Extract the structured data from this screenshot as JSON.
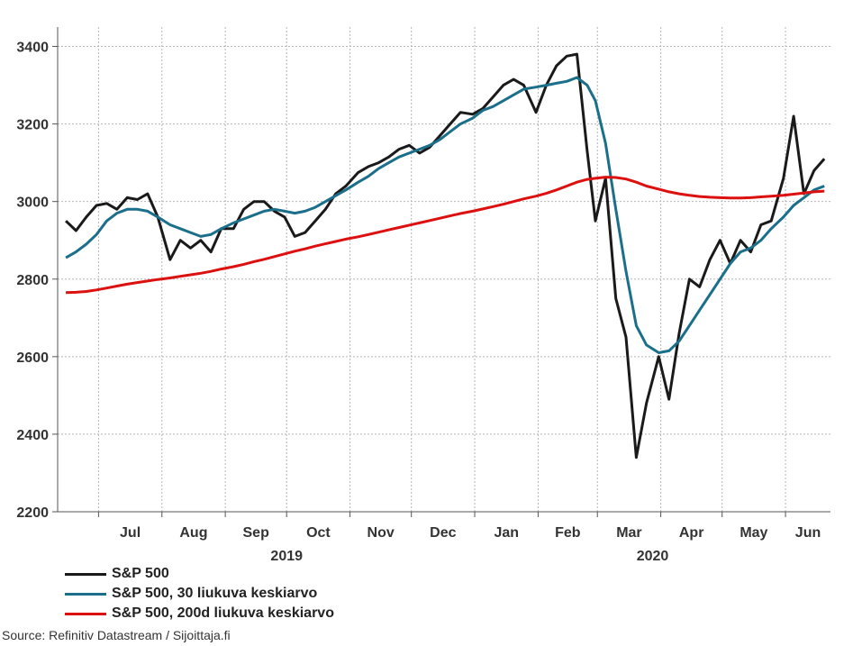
{
  "chart_data": {
    "type": "line",
    "title": "",
    "xlabel": "",
    "ylabel": "",
    "ylim": [
      2200,
      3450
    ],
    "y_ticks": [
      2200,
      2400,
      2600,
      2800,
      3000,
      3200,
      3400
    ],
    "grid": true,
    "legend_placement": "bottom-left",
    "months": [
      "Jul",
      "Aug",
      "Sep",
      "Oct",
      "Nov",
      "Dec",
      "Jan",
      "Feb",
      "Mar",
      "Apr",
      "May",
      "Jun"
    ],
    "years": [
      "2019",
      "2020"
    ],
    "x": [
      "2019-06-15",
      "2019-06-20",
      "2019-06-25",
      "2019-06-30",
      "2019-07-05",
      "2019-07-10",
      "2019-07-15",
      "2019-07-20",
      "2019-07-25",
      "2019-07-30",
      "2019-08-05",
      "2019-08-10",
      "2019-08-15",
      "2019-08-20",
      "2019-08-25",
      "2019-08-30",
      "2019-09-05",
      "2019-09-10",
      "2019-09-15",
      "2019-09-20",
      "2019-09-25",
      "2019-09-30",
      "2019-10-05",
      "2019-10-10",
      "2019-10-15",
      "2019-10-20",
      "2019-10-25",
      "2019-10-30",
      "2019-11-05",
      "2019-11-10",
      "2019-11-15",
      "2019-11-20",
      "2019-11-25",
      "2019-11-30",
      "2019-12-05",
      "2019-12-10",
      "2019-12-15",
      "2019-12-20",
      "2019-12-25",
      "2019-12-31",
      "2020-01-05",
      "2020-01-10",
      "2020-01-15",
      "2020-01-20",
      "2020-01-25",
      "2020-01-31",
      "2020-02-05",
      "2020-02-10",
      "2020-02-15",
      "2020-02-20",
      "2020-02-25",
      "2020-02-29",
      "2020-03-05",
      "2020-03-10",
      "2020-03-15",
      "2020-03-20",
      "2020-03-25",
      "2020-03-31",
      "2020-04-05",
      "2020-04-10",
      "2020-04-15",
      "2020-04-20",
      "2020-04-25",
      "2020-04-30",
      "2020-05-05",
      "2020-05-10",
      "2020-05-15",
      "2020-05-20",
      "2020-05-25",
      "2020-05-31",
      "2020-06-05",
      "2020-06-10",
      "2020-06-15",
      "2020-06-20"
    ],
    "series": [
      {
        "name": "S&P 500",
        "color": "#1a1a1a",
        "values": [
          2950,
          2925,
          2960,
          2990,
          2995,
          2980,
          3010,
          3005,
          3020,
          2960,
          2850,
          2900,
          2880,
          2900,
          2870,
          2930,
          2930,
          2980,
          3000,
          3000,
          2975,
          2960,
          2910,
          2920,
          2950,
          2980,
          3020,
          3040,
          3075,
          3090,
          3100,
          3115,
          3135,
          3145,
          3125,
          3140,
          3170,
          3200,
          3230,
          3225,
          3240,
          3270,
          3300,
          3315,
          3300,
          3230,
          3300,
          3350,
          3375,
          3380,
          3130,
          2950,
          3060,
          2750,
          2650,
          2340,
          2480,
          2600,
          2490,
          2660,
          2800,
          2780,
          2850,
          2900,
          2840,
          2900,
          2870,
          2940,
          2950,
          3060,
          3220,
          3020,
          3080,
          3110
        ]
      },
      {
        "name": "S&P 500, 30 liukuva keskiarvo",
        "color": "#1b6f8a",
        "values": [
          2855,
          2870,
          2890,
          2915,
          2950,
          2970,
          2980,
          2980,
          2975,
          2960,
          2940,
          2930,
          2920,
          2910,
          2915,
          2930,
          2945,
          2955,
          2965,
          2975,
          2980,
          2975,
          2970,
          2975,
          2985,
          3000,
          3015,
          3030,
          3050,
          3065,
          3085,
          3100,
          3115,
          3125,
          3135,
          3145,
          3160,
          3180,
          3200,
          3215,
          3235,
          3245,
          3260,
          3275,
          3290,
          3295,
          3300,
          3305,
          3310,
          3320,
          3300,
          3260,
          3150,
          2980,
          2820,
          2680,
          2630,
          2610,
          2615,
          2640,
          2680,
          2720,
          2760,
          2800,
          2840,
          2870,
          2880,
          2900,
          2930,
          2960,
          2990,
          3010,
          3030,
          3040
        ]
      },
      {
        "name": "S&P 500, 200d liukuva keskiarvo",
        "color": "#dd1010",
        "values": [
          2765,
          2766,
          2768,
          2772,
          2777,
          2782,
          2787,
          2791,
          2795,
          2799,
          2803,
          2807,
          2811,
          2815,
          2820,
          2826,
          2832,
          2838,
          2845,
          2851,
          2858,
          2865,
          2872,
          2878,
          2885,
          2891,
          2897,
          2903,
          2909,
          2915,
          2921,
          2927,
          2933,
          2939,
          2945,
          2951,
          2957,
          2963,
          2969,
          2975,
          2981,
          2987,
          2993,
          3000,
          3007,
          3014,
          3021,
          3030,
          3040,
          3050,
          3057,
          3060,
          3063,
          3062,
          3058,
          3050,
          3040,
          3032,
          3025,
          3020,
          3016,
          3013,
          3011,
          3010,
          3009,
          3009,
          3010,
          3012,
          3014,
          3016,
          3019,
          3022,
          3025,
          3027
        ]
      }
    ],
    "source": "Source: Refinitiv Datastream / Sijoittaja.fi"
  }
}
